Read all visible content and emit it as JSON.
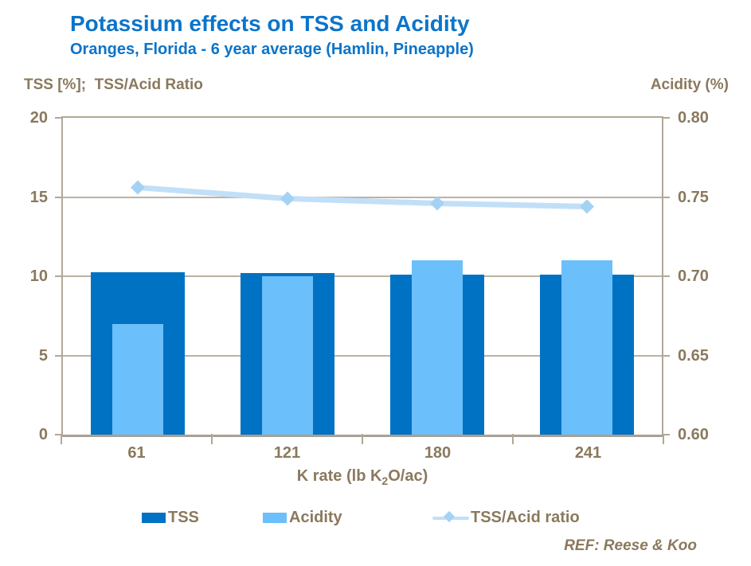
{
  "title": "Potassium effects on TSS and Acidity",
  "subtitle": "Oranges, Florida - 6 year average (Hamlin, Pineapple)",
  "left_axis_title": "TSS [%];  TSS/Acid Ratio",
  "right_axis_title": "Acidity (%)",
  "x_axis_title": {
    "pre": "K rate (lb K",
    "sub": "2",
    "post": "O/ac)"
  },
  "ref_note": "REF: Reese & Koo",
  "legend": {
    "tss_label": "TSS",
    "acidity_label": "Acidity",
    "ratio_label": "TSS/Acid ratio"
  },
  "colors": {
    "title_blue": "#0b74c9",
    "text_brown": "#8a795d",
    "grid_tan": "#bcb2a4",
    "border_tan": "#b2a798",
    "axis_gray": "#a9a095",
    "tss_bar": "#0072c4",
    "acidity_bar": "#6bbffa",
    "ratio_line": "#c2dff8",
    "ratio_marker": "#a5d2f3"
  },
  "chart_data": {
    "type": "bar",
    "subtype": "combo bar + line, dual axis",
    "title": "Potassium effects on TSS and Acidity",
    "subtitle": "Oranges, Florida - 6 year average (Hamlin, Pineapple)",
    "categories": [
      "61",
      "121",
      "180",
      "241"
    ],
    "xlabel": "K rate (lb K2O/ac)",
    "left_axis": {
      "label": "TSS [%];  TSS/Acid Ratio",
      "min": 0,
      "max": 20,
      "ticks": [
        "20",
        "15",
        "10",
        "5",
        "0"
      ]
    },
    "right_axis": {
      "label": "Acidity (%)",
      "min": 0.6,
      "max": 0.8,
      "ticks": [
        "0.80",
        "0.75",
        "0.70",
        "0.65",
        "0.60"
      ]
    },
    "grid": "horizontal only",
    "legend_position": "bottom",
    "series": [
      {
        "name": "TSS",
        "type": "bar",
        "axis": "left",
        "values": [
          10.25,
          10.2,
          10.1,
          10.1
        ],
        "color": "#0072c4"
      },
      {
        "name": "Acidity",
        "type": "bar",
        "axis": "right",
        "values": [
          0.67,
          0.7,
          0.71,
          0.71
        ],
        "color": "#6bbffa"
      },
      {
        "name": "TSS/Acid ratio",
        "type": "line",
        "axis": "left",
        "values": [
          15.6,
          14.9,
          14.6,
          14.4
        ],
        "color": "#c2dff8",
        "marker": "diamond",
        "marker_color": "#a5d2f3"
      }
    ],
    "annotations": [
      "REF: Reese & Koo"
    ]
  }
}
